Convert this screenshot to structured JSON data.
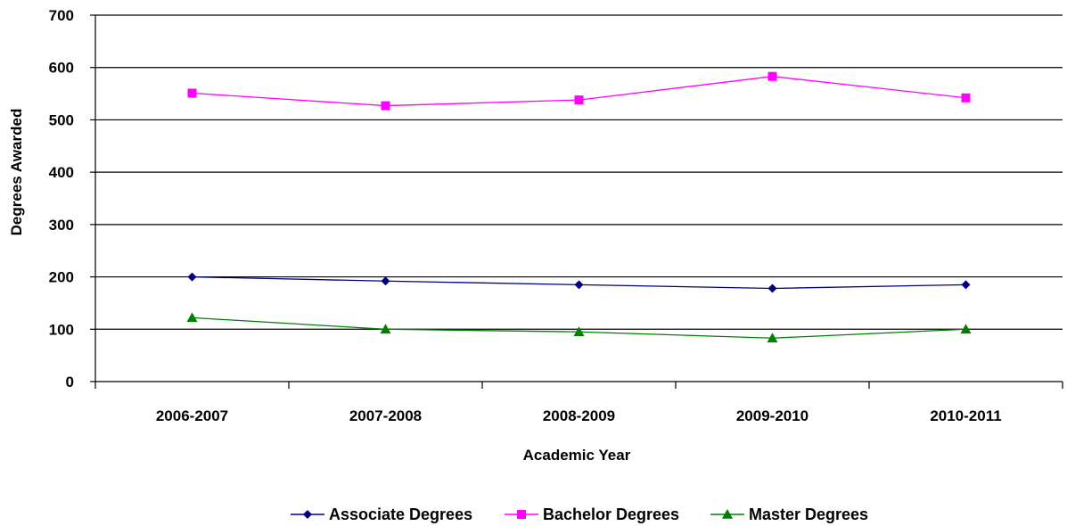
{
  "chart_data": {
    "type": "line",
    "categories": [
      "2006-2007",
      "2007-2008",
      "2008-2009",
      "2009-2010",
      "2010-2011"
    ],
    "series": [
      {
        "name": "Associate Degrees",
        "values": [
          200,
          192,
          185,
          178,
          185
        ],
        "color": "#000080",
        "marker": "diamond"
      },
      {
        "name": "Bachelor Degrees",
        "values": [
          551,
          527,
          538,
          583,
          542
        ],
        "color": "#FF00FF",
        "marker": "square"
      },
      {
        "name": "Master Degrees",
        "values": [
          122,
          100,
          95,
          83,
          100
        ],
        "color": "#008000",
        "marker": "triangle"
      }
    ],
    "xlabel": "Academic Year",
    "ylabel": "Degrees Awarded",
    "ylim": [
      0,
      700
    ],
    "yticks": [
      0,
      100,
      200,
      300,
      400,
      500,
      600,
      700
    ],
    "grid": "horizontal",
    "legend_position": "bottom"
  }
}
